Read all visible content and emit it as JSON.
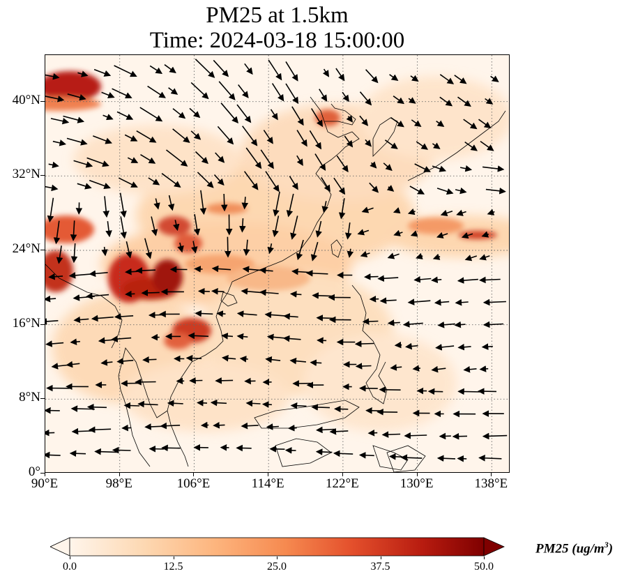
{
  "title": {
    "line1": "PM25 at 1.5km",
    "line2": "Time: 2024-03-18 15:00:00"
  },
  "map": {
    "projection": "PlateCarree",
    "lon_range": [
      90,
      140
    ],
    "lat_range": [
      0,
      45
    ],
    "x_ticks": [
      {
        "value": 90,
        "label": "90°E"
      },
      {
        "value": 98,
        "label": "98°E"
      },
      {
        "value": 106,
        "label": "106°E"
      },
      {
        "value": 114,
        "label": "114°E"
      },
      {
        "value": 122,
        "label": "122°E"
      },
      {
        "value": 130,
        "label": "130°E"
      },
      {
        "value": 138,
        "label": "138°E"
      }
    ],
    "y_ticks": [
      {
        "value": 0,
        "label": "0°"
      },
      {
        "value": 8,
        "label": "8°N"
      },
      {
        "value": 16,
        "label": "16°N"
      },
      {
        "value": 24,
        "label": "24°N"
      },
      {
        "value": 32,
        "label": "32°N"
      },
      {
        "value": 40,
        "label": "40°N"
      }
    ],
    "gridlines": "dotted gray at tick positions",
    "background_color": "#fff5eb"
  },
  "colorbar": {
    "colormap": "OrRd",
    "min": 0.0,
    "max": 50.0,
    "extend": "both",
    "ticks": [
      "0.0",
      "12.5",
      "25.0",
      "37.5",
      "50.0"
    ],
    "tick_values": [
      0,
      12.5,
      25,
      37.5,
      50
    ],
    "label_main": "PM25 (ug/m",
    "label_sup": "3",
    "label_close": ")",
    "colors": [
      "#fff5eb",
      "#fdd8b2",
      "#fdb57e",
      "#f68a50",
      "#e4502c",
      "#b81c10",
      "#7f0000"
    ]
  }
}
